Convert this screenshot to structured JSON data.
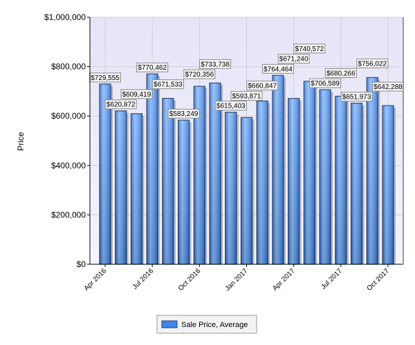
{
  "chart_data": {
    "type": "bar",
    "title": "",
    "xlabel": "",
    "ylabel": "Price",
    "ylim": [
      0,
      1000000
    ],
    "yticks": [
      "$0",
      "$200,000",
      "$400,000",
      "$600,000",
      "$800,000",
      "$1,000,000"
    ],
    "ytick_values": [
      0,
      200000,
      400000,
      600000,
      800000,
      1000000
    ],
    "categories": [
      "Apr 2016",
      "May 2016",
      "Jun 2016",
      "Jul 2016",
      "Aug 2016",
      "Sep 2016",
      "Oct 2016",
      "Nov 2016",
      "Dec 2016",
      "Jan 2017",
      "Feb 2017",
      "Mar 2017",
      "Apr 2017",
      "May 2017",
      "Jun 2017",
      "Jul 2017",
      "Aug 2017",
      "Sep 2017",
      "Oct 2017"
    ],
    "xtick_labels": [
      "Apr 2016",
      "Jul 2016",
      "Oct 2016",
      "Jan 2017",
      "Apr 2017",
      "Jul 2017",
      "Oct 2017"
    ],
    "series": [
      {
        "name": "Sale Price, Average",
        "color": "#3d86e6",
        "values": [
          729555,
          620872,
          609419,
          770462,
          671533,
          583249,
          720356,
          733738,
          615403,
          593871,
          660847,
          764464,
          671240,
          740572,
          706589,
          680266,
          651973,
          756022,
          642288
        ],
        "labels": [
          "$729,555",
          "$620,872",
          "$609,419",
          "$770,462",
          "$671,533",
          "$583,249",
          "$720,356",
          "$733,738",
          "$615,403",
          "$593,871",
          "$660,847",
          "$764,464",
          "$671,240",
          "$740,572",
          "$706,589",
          "$680,266",
          "$651,973",
          "$756,022",
          "$642,288"
        ]
      }
    ],
    "grid": true,
    "legend_placement": "bottom",
    "plot_background": "#ecebf9"
  }
}
